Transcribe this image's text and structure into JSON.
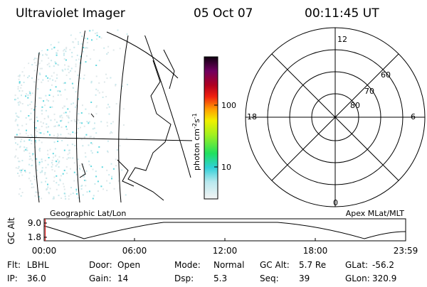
{
  "header": {
    "title": "Ultraviolet Imager",
    "date": "05 Oct 07",
    "time": "00:11:45 UT"
  },
  "colorbar": {
    "label": {
      "base": "photon cm",
      "exp1": "-2",
      "unit2": "s",
      "exp2": "-1"
    },
    "ticks": [
      "100",
      "10"
    ]
  },
  "map_label": "Geographic Lat/Lon",
  "polar_plot": {
    "label": "Apex MLat/MLT",
    "mlt_labels": [
      "12",
      "18",
      "6",
      "0"
    ],
    "mlat_labels": [
      "60",
      "70",
      "80"
    ]
  },
  "altitude_plot": {
    "axis_label": "GC Alt",
    "y_ticks": [
      "9.0",
      "1.8"
    ],
    "x_ticks": [
      "00:00",
      "06:00",
      "12:00",
      "18:00",
      "23:59"
    ]
  },
  "info": [
    [
      {
        "label": "Flt:",
        "value": "LBHL"
      },
      {
        "label": "Door:",
        "value": "Open"
      },
      {
        "label": "Mode:",
        "value": "Normal"
      },
      {
        "label": "GC Alt:",
        "value": "5.7 Re"
      },
      {
        "label": "GLat:",
        "value": "-56.2"
      }
    ],
    [
      {
        "label": "IP:",
        "value": "36.0"
      },
      {
        "label": "Gain:",
        "value": "14"
      },
      {
        "label": "Dsp:",
        "value": "5.3"
      },
      {
        "label": "Seq:",
        "value": "39"
      },
      {
        "label": "GLon:",
        "value": "320.9"
      }
    ]
  ]
}
